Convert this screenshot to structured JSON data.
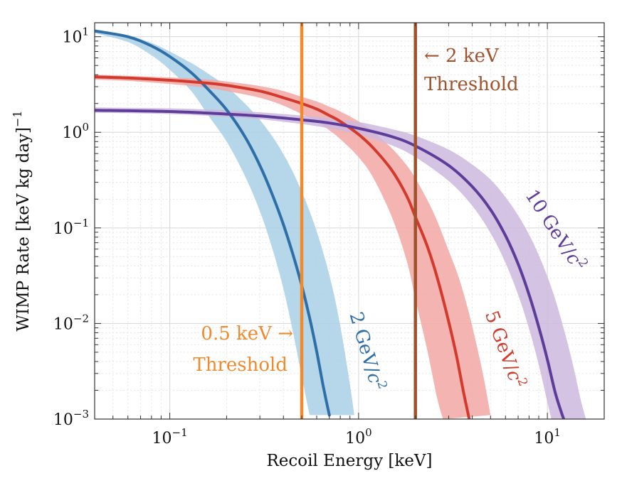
{
  "chart_data": {
    "type": "line",
    "xlabel": "Recoil Energy [keV]",
    "ylabel": "WIMP Rate [keV kg day]",
    "ylabel_exponent": "−1",
    "x_scale": "log",
    "y_scale": "log",
    "xlim": [
      0.04,
      20
    ],
    "ylim": [
      0.001,
      14
    ],
    "x_ticks": [
      {
        "value": 0.1,
        "base": "10",
        "exp": "−1"
      },
      {
        "value": 1,
        "base": "10",
        "exp": "0"
      },
      {
        "value": 10,
        "base": "10",
        "exp": "1"
      }
    ],
    "y_ticks": [
      {
        "value": 0.001,
        "base": "10",
        "exp": "−3"
      },
      {
        "value": 0.01,
        "base": "10",
        "exp": "−2"
      },
      {
        "value": 0.1,
        "base": "10",
        "exp": "−1"
      },
      {
        "value": 1,
        "base": "10",
        "exp": "0"
      },
      {
        "value": 10,
        "base": "10",
        "exp": "1"
      }
    ],
    "grid": true,
    "series": [
      {
        "label_main": "2 GeV/",
        "label_sup": "2",
        "label_var": "c",
        "color": "#2f6fa8",
        "band_color": "#a9cfe6",
        "x": [
          0.04,
          0.06,
          0.08,
          0.1,
          0.13,
          0.16,
          0.2,
          0.25,
          0.3,
          0.35,
          0.4,
          0.45,
          0.5,
          0.55,
          0.6,
          0.65,
          0.7
        ],
        "y": [
          11.5,
          10.0,
          8.0,
          6.2,
          4.2,
          2.8,
          1.72,
          0.9,
          0.45,
          0.22,
          0.108,
          0.052,
          0.025,
          0.0115,
          0.0051,
          0.0022,
          0.0011
        ],
        "band_upper": [
          11.6,
          10.3,
          8.6,
          7.0,
          5.3,
          4.1,
          3.0,
          2.0,
          1.35,
          0.9,
          0.59,
          0.38,
          0.24,
          0.15,
          0.092,
          0.055,
          0.032,
          0.018,
          0.0094,
          0.0047,
          0.0023,
          0.0011
        ],
        "band_upper_x": [
          0.04,
          0.06,
          0.08,
          0.1,
          0.13,
          0.16,
          0.2,
          0.25,
          0.3,
          0.35,
          0.4,
          0.45,
          0.5,
          0.55,
          0.6,
          0.65,
          0.7,
          0.75,
          0.8,
          0.85,
          0.9,
          0.95
        ],
        "band_lower": [
          10.9,
          8.8,
          6.4,
          4.5,
          2.7,
          1.5,
          0.8,
          0.35,
          0.15,
          0.06,
          0.023,
          0.008,
          0.0028,
          0.0011
        ],
        "band_lower_x": [
          0.04,
          0.06,
          0.08,
          0.1,
          0.13,
          0.16,
          0.2,
          0.25,
          0.3,
          0.35,
          0.4,
          0.45,
          0.5,
          0.55
        ]
      },
      {
        "label_main": "5 GeV/",
        "label_sup": "2",
        "label_var": "c",
        "color": "#d33a2c",
        "band_color": "#f2a7a5",
        "x": [
          0.04,
          0.06,
          0.1,
          0.15,
          0.2,
          0.3,
          0.4,
          0.5,
          0.6,
          0.7,
          0.8,
          1.0,
          1.2,
          1.5,
          1.8,
          2.0,
          2.3,
          2.6,
          3.0,
          3.3,
          3.6,
          3.9
        ],
        "y": [
          3.8,
          3.7,
          3.5,
          3.3,
          3.1,
          2.7,
          2.3,
          2.0,
          1.75,
          1.5,
          1.3,
          0.95,
          0.68,
          0.4,
          0.215,
          0.13,
          0.066,
          0.031,
          0.0105,
          0.0046,
          0.0019,
          0.0009
        ],
        "band_upper": [
          4.0,
          3.9,
          3.75,
          3.6,
          3.4,
          3.05,
          2.7,
          2.35,
          2.1,
          1.85,
          1.65,
          1.3,
          1.0,
          0.68,
          0.45,
          0.33,
          0.2,
          0.12,
          0.058,
          0.03,
          0.014,
          0.0062,
          0.0027,
          0.0011
        ],
        "band_upper_x": [
          0.04,
          0.06,
          0.1,
          0.15,
          0.2,
          0.3,
          0.4,
          0.5,
          0.6,
          0.7,
          0.8,
          1.0,
          1.2,
          1.5,
          1.8,
          2.0,
          2.3,
          2.6,
          3.0,
          3.4,
          3.8,
          4.2,
          4.6,
          5.0
        ],
        "band_lower": [
          3.55,
          3.45,
          3.2,
          2.95,
          2.7,
          2.3,
          1.9,
          1.55,
          1.3,
          1.05,
          0.85,
          0.55,
          0.33,
          0.13,
          0.045,
          0.018,
          0.0055,
          0.0017,
          0.001
        ],
        "band_lower_x": [
          0.04,
          0.06,
          0.1,
          0.15,
          0.2,
          0.3,
          0.4,
          0.5,
          0.6,
          0.7,
          0.8,
          1.0,
          1.2,
          1.5,
          1.8,
          2.0,
          2.3,
          2.6,
          2.8
        ]
      },
      {
        "label_main": "10 GeV/",
        "label_sup": "2",
        "label_var": "c",
        "color": "#5e3c99",
        "band_color": "#cdb8dd",
        "x": [
          0.04,
          0.1,
          0.2,
          0.3,
          0.5,
          0.7,
          1.0,
          1.5,
          2.0,
          3.0,
          4.0,
          5.0,
          6.0,
          7.0,
          8.0,
          9.0,
          10.0,
          11.0,
          12.0,
          12.5
        ],
        "y": [
          1.7,
          1.65,
          1.55,
          1.48,
          1.35,
          1.25,
          1.1,
          0.9,
          0.72,
          0.45,
          0.27,
          0.155,
          0.083,
          0.042,
          0.02,
          0.0092,
          0.0042,
          0.0019,
          0.0011,
          0.0009
        ],
        "band_upper": [
          1.82,
          1.78,
          1.7,
          1.62,
          1.5,
          1.4,
          1.28,
          1.08,
          0.92,
          0.66,
          0.46,
          0.32,
          0.21,
          0.135,
          0.085,
          0.052,
          0.031,
          0.018,
          0.01,
          0.0055,
          0.003,
          0.0016,
          0.001
        ],
        "band_upper_x": [
          0.04,
          0.1,
          0.2,
          0.3,
          0.5,
          0.7,
          1.0,
          1.5,
          2.0,
          3.0,
          4.0,
          5.0,
          6.0,
          7.0,
          8.0,
          9.0,
          10.0,
          11.0,
          12.0,
          13.0,
          14.0,
          15.0,
          16.0
        ],
        "band_lower": [
          1.6,
          1.55,
          1.45,
          1.37,
          1.22,
          1.1,
          0.95,
          0.73,
          0.55,
          0.31,
          0.17,
          0.088,
          0.043,
          0.02,
          0.0088,
          0.0037,
          0.0015,
          0.001
        ],
        "band_lower_x": [
          0.04,
          0.1,
          0.2,
          0.3,
          0.5,
          0.7,
          1.0,
          1.5,
          2.0,
          3.0,
          4.0,
          5.0,
          6.0,
          7.0,
          8.0,
          9.0,
          10.0,
          10.5
        ]
      }
    ],
    "thresholds": [
      {
        "x": 0.5,
        "color": "#f08a2c",
        "line1": "0.5 keV →",
        "line2": "Threshold"
      },
      {
        "x": 2.0,
        "color": "#a0522d",
        "line1": "← 2 keV",
        "line2": "Threshold"
      }
    ]
  }
}
